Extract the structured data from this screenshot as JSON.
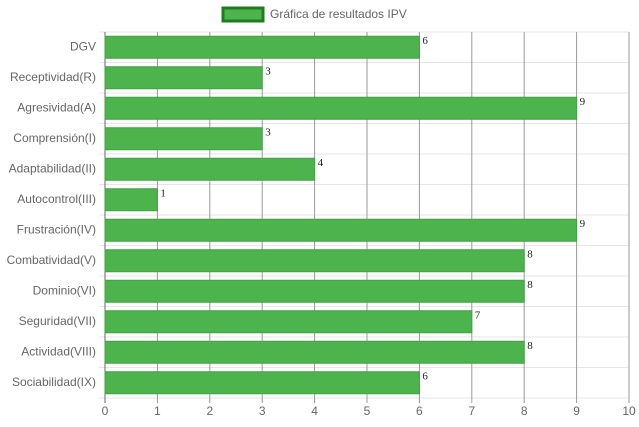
{
  "chart_data": {
    "type": "bar",
    "orientation": "horizontal",
    "categories": [
      "DGV",
      "Receptividad(R)",
      "Agresividad(A)",
      "Comprensión(I)",
      "Adaptabilidad(II)",
      "Autocontrol(III)",
      "Frustración(IV)",
      "Combatividad(V)",
      "Dominio(VI)",
      "Seguridad(VII)",
      "Actividad(VIII)",
      "Sociabilidad(IX)"
    ],
    "series": [
      {
        "name": "Gráfica de resultados IPV",
        "color": "#4db34d",
        "values": [
          6,
          3,
          9,
          3,
          4,
          1,
          9,
          8,
          8,
          7,
          8,
          6
        ]
      }
    ],
    "xlim": [
      0,
      10
    ],
    "xticks": [
      0,
      1,
      2,
      3,
      4,
      5,
      6,
      7,
      8,
      9,
      10
    ],
    "grid": true,
    "legend": "top"
  }
}
